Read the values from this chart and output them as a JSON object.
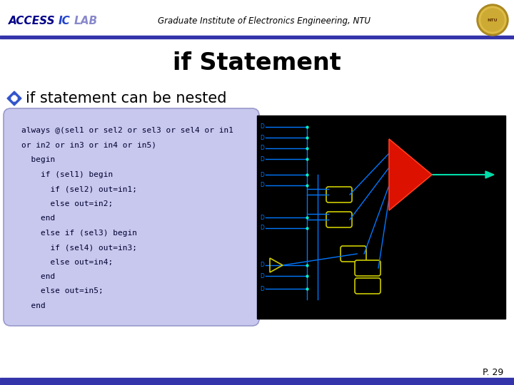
{
  "title": "if Statement",
  "header_center": "Graduate Institute of Electronics Engineering, NTU",
  "bullet_text": "if statement can be nested",
  "code_lines": [
    "always @(sel1 or sel2 or sel3 or sel4 or in1",
    "or in2 or in3 or in4 or in5)",
    "  begin",
    "    if (sel1) begin",
    "      if (sel2) out=in1;",
    "      else out=in2;",
    "    end",
    "    else if (sel3) begin",
    "      if (sel4) out=in3;",
    "      else out=in4;",
    "    end",
    "    else out=in5;",
    "  end"
  ],
  "bg_color": "#ffffff",
  "header_bar_color": "#3333aa",
  "title_color": "#000000",
  "bullet_color": "#000000",
  "code_bg_color": "#c8c8ee",
  "code_border_color": "#9999cc",
  "code_text_color": "#000033",
  "access_color": "#0000aa",
  "lab_color": "#aaaacc",
  "header_text_color": "#000000",
  "footer_text": "P. 29",
  "footer_bar_color": "#3333aa",
  "bullet_diamond_color": "#3355cc",
  "circuit_bg": "#000000",
  "line_color": "#0077ff",
  "gate_color": "#cccc00",
  "red_gate_color": "#dd1100",
  "out_color": "#00ddaa"
}
